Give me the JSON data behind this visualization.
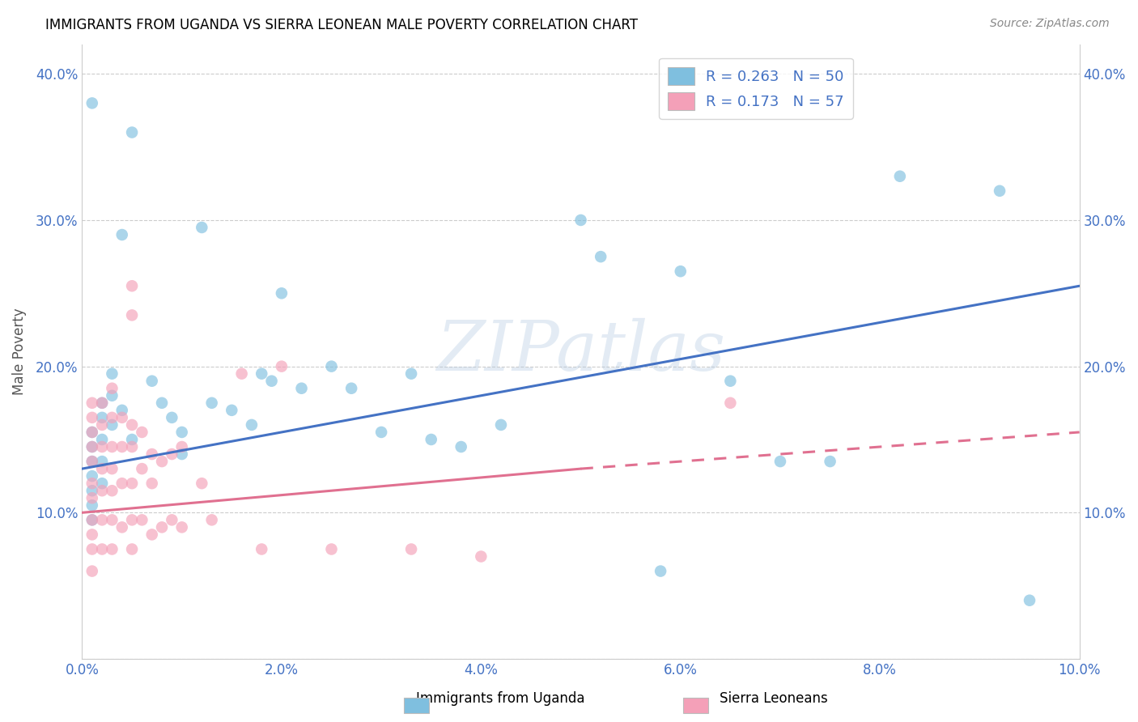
{
  "title": "IMMIGRANTS FROM UGANDA VS SIERRA LEONEAN MALE POVERTY CORRELATION CHART",
  "source": "Source: ZipAtlas.com",
  "ylabel": "Male Poverty",
  "legend_label1": "Immigrants from Uganda",
  "legend_label2": "Sierra Leoneans",
  "r1": 0.263,
  "n1": 50,
  "r2": 0.173,
  "n2": 57,
  "color1": "#7fbfdf",
  "color2": "#f4a0b8",
  "trendline1_color": "#4472c4",
  "trendline2_color": "#e07090",
  "xlim": [
    0.0,
    0.1
  ],
  "ylim": [
    0.0,
    0.42
  ],
  "x_ticks": [
    0.0,
    0.02,
    0.04,
    0.06,
    0.08,
    0.1
  ],
  "y_ticks": [
    0.0,
    0.1,
    0.2,
    0.3,
    0.4
  ],
  "x_tick_labels": [
    "0.0%",
    "2.0%",
    "4.0%",
    "6.0%",
    "8.0%",
    "10.0%"
  ],
  "y_tick_labels_left": [
    "",
    "10.0%",
    "20.0%",
    "30.0%",
    "40.0%"
  ],
  "y_tick_labels_right": [
    "",
    "10.0%",
    "20.0%",
    "30.0%",
    "40.0%"
  ],
  "watermark": "ZIPatlas",
  "trendline1_x0": 0.0,
  "trendline1_y0": 0.13,
  "trendline1_x1": 0.1,
  "trendline1_y1": 0.255,
  "trendline2_x0": 0.0,
  "trendline2_y0": 0.1,
  "trendline2_x1": 0.05,
  "trendline2_y1": 0.13,
  "trendline2_solid_end": 0.05,
  "trendline2_x1_dash": 0.1,
  "trendline2_y1_dash": 0.155,
  "scatter1_x": [
    0.001,
    0.001,
    0.001,
    0.001,
    0.001,
    0.001,
    0.001,
    0.001,
    0.002,
    0.002,
    0.002,
    0.002,
    0.002,
    0.003,
    0.003,
    0.003,
    0.004,
    0.004,
    0.005,
    0.005,
    0.007,
    0.008,
    0.009,
    0.01,
    0.01,
    0.012,
    0.013,
    0.015,
    0.017,
    0.018,
    0.019,
    0.02,
    0.022,
    0.025,
    0.027,
    0.03,
    0.033,
    0.035,
    0.038,
    0.042,
    0.05,
    0.052,
    0.058,
    0.06,
    0.065,
    0.07,
    0.075,
    0.082,
    0.092,
    0.095
  ],
  "scatter1_y": [
    0.38,
    0.155,
    0.145,
    0.135,
    0.125,
    0.115,
    0.105,
    0.095,
    0.175,
    0.165,
    0.15,
    0.135,
    0.12,
    0.195,
    0.18,
    0.16,
    0.29,
    0.17,
    0.36,
    0.15,
    0.19,
    0.175,
    0.165,
    0.155,
    0.14,
    0.295,
    0.175,
    0.17,
    0.16,
    0.195,
    0.19,
    0.25,
    0.185,
    0.2,
    0.185,
    0.155,
    0.195,
    0.15,
    0.145,
    0.16,
    0.3,
    0.275,
    0.06,
    0.265,
    0.19,
    0.135,
    0.135,
    0.33,
    0.32,
    0.04
  ],
  "scatter2_x": [
    0.001,
    0.001,
    0.001,
    0.001,
    0.001,
    0.001,
    0.001,
    0.001,
    0.001,
    0.001,
    0.001,
    0.002,
    0.002,
    0.002,
    0.002,
    0.002,
    0.002,
    0.002,
    0.003,
    0.003,
    0.003,
    0.003,
    0.003,
    0.003,
    0.003,
    0.004,
    0.004,
    0.004,
    0.004,
    0.005,
    0.005,
    0.005,
    0.005,
    0.005,
    0.005,
    0.005,
    0.006,
    0.006,
    0.006,
    0.007,
    0.007,
    0.007,
    0.008,
    0.008,
    0.009,
    0.009,
    0.01,
    0.01,
    0.012,
    0.013,
    0.016,
    0.018,
    0.02,
    0.025,
    0.033,
    0.04,
    0.065
  ],
  "scatter2_y": [
    0.175,
    0.165,
    0.155,
    0.145,
    0.135,
    0.12,
    0.11,
    0.095,
    0.085,
    0.075,
    0.06,
    0.175,
    0.16,
    0.145,
    0.13,
    0.115,
    0.095,
    0.075,
    0.185,
    0.165,
    0.145,
    0.13,
    0.115,
    0.095,
    0.075,
    0.165,
    0.145,
    0.12,
    0.09,
    0.255,
    0.235,
    0.16,
    0.145,
    0.12,
    0.095,
    0.075,
    0.155,
    0.13,
    0.095,
    0.14,
    0.12,
    0.085,
    0.135,
    0.09,
    0.14,
    0.095,
    0.145,
    0.09,
    0.12,
    0.095,
    0.195,
    0.075,
    0.2,
    0.075,
    0.075,
    0.07,
    0.175
  ]
}
